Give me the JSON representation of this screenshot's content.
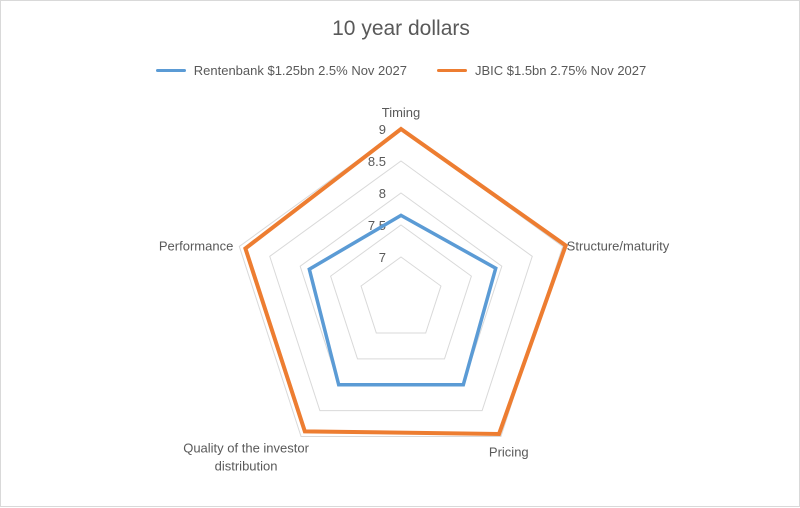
{
  "chart_data": {
    "type": "radar",
    "title": "10 year dollars",
    "axes": [
      "Timing",
      "Structure/maturity",
      "Pricing",
      "Quality of the investor distribution",
      "Performance"
    ],
    "axis_label_lines": [
      [
        "Timing"
      ],
      [
        "Structure/maturity"
      ],
      [
        "Pricing"
      ],
      [
        "Quality of the investor",
        "distribution"
      ],
      [
        "Performance"
      ]
    ],
    "ticks": [
      "7",
      "7.5",
      "8",
      "8.5",
      "9"
    ],
    "range": [
      7,
      9
    ],
    "grid": true,
    "legend_position": "top",
    "series": [
      {
        "name": "Rentenbank $1.25bn 2.5% Nov 2027",
        "color": "#5b9bd5",
        "values": [
          7.65,
          7.9,
          8.0,
          8.0,
          7.85
        ]
      },
      {
        "name": "JBIC $1.5bn 2.75% Nov 2027",
        "color": "#ed7d31",
        "values": [
          9.0,
          9.05,
          8.95,
          8.9,
          8.9
        ]
      }
    ]
  }
}
